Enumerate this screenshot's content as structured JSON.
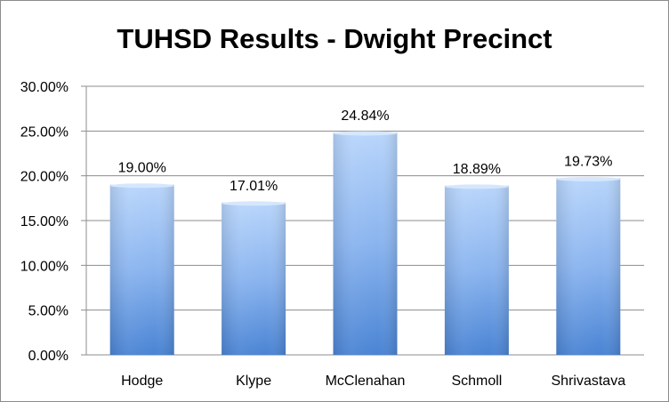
{
  "chart_data": {
    "type": "bar",
    "title": "TUHSD Results - Dwight Precinct",
    "xlabel": "",
    "ylabel": "",
    "categories": [
      "Hodge",
      "Klype",
      "McClenahan",
      "Schmoll",
      "Shrivastava"
    ],
    "values": [
      19.0,
      17.01,
      24.84,
      18.89,
      19.73
    ],
    "data_labels": [
      "19.00%",
      "17.01%",
      "24.84%",
      "18.89%",
      "19.73%"
    ],
    "ylim": [
      0,
      30
    ],
    "yticks": [
      0,
      5,
      10,
      15,
      20,
      25,
      30
    ],
    "ytick_labels": [
      "0.00%",
      "5.00%",
      "10.00%",
      "15.00%",
      "20.00%",
      "25.00%",
      "30.00%"
    ],
    "grid": true,
    "legend": "none",
    "colors": {
      "bar_top": "#b8d5fb",
      "bar_bottom": "#4a84d4",
      "grid": "#8c8c8c"
    }
  }
}
